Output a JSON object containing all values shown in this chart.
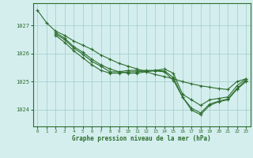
{
  "bg_color": "#d4eeee",
  "grid_color": "#aacfcf",
  "line_color": "#2d6e2d",
  "xlabel": "Graphe pression niveau de la mer (hPa)",
  "xlim": [
    -0.5,
    23.5
  ],
  "ylim": [
    1023.4,
    1027.8
  ],
  "yticks": [
    1024,
    1025,
    1026,
    1027
  ],
  "xticks": [
    0,
    1,
    2,
    3,
    4,
    5,
    6,
    7,
    8,
    9,
    10,
    11,
    12,
    13,
    14,
    15,
    16,
    17,
    18,
    19,
    20,
    21,
    22,
    23
  ],
  "lines": [
    {
      "x": [
        0,
        1,
        2,
        3,
        4,
        5,
        6,
        7,
        8,
        9,
        10,
        11,
        12,
        13,
        14,
        15,
        16,
        17,
        18,
        19,
        20,
        21,
        22,
        23
      ],
      "y": [
        1027.55,
        1027.1,
        1026.8,
        1026.65,
        1026.45,
        1026.3,
        1026.15,
        1025.95,
        1025.8,
        1025.65,
        1025.55,
        1025.45,
        1025.35,
        1025.25,
        1025.18,
        1025.1,
        1025.0,
        1024.92,
        1024.85,
        1024.8,
        1024.75,
        1024.72,
        1025.0,
        1025.1
      ]
    },
    {
      "x": [
        2,
        3,
        4,
        5,
        6,
        7,
        8,
        9,
        10,
        11,
        12,
        13,
        14,
        15,
        16,
        17,
        18,
        19,
        20,
        21,
        22,
        23
      ],
      "y": [
        1026.75,
        1026.55,
        1026.25,
        1026.05,
        1025.8,
        1025.6,
        1025.45,
        1025.35,
        1025.3,
        1025.3,
        1025.35,
        1025.4,
        1025.45,
        1025.3,
        1024.55,
        1024.35,
        1024.15,
        1024.35,
        1024.4,
        1024.45,
        1024.85,
        1025.1
      ]
    },
    {
      "x": [
        2,
        3,
        4,
        5,
        6,
        7,
        8,
        9,
        10,
        11,
        12,
        13,
        14,
        15,
        16,
        17,
        18,
        19,
        20,
        21,
        22,
        23
      ],
      "y": [
        1026.7,
        1026.5,
        1026.2,
        1025.98,
        1025.72,
        1025.55,
        1025.35,
        1025.35,
        1025.4,
        1025.4,
        1025.4,
        1025.4,
        1025.38,
        1025.15,
        1024.45,
        1024.05,
        1023.88,
        1024.2,
        1024.3,
        1024.38,
        1024.75,
        1025.05
      ]
    },
    {
      "x": [
        2,
        3,
        4,
        5,
        6,
        7,
        8,
        9,
        10,
        11,
        12,
        13,
        14,
        15,
        16,
        17,
        18,
        19,
        20,
        21,
        22,
        23
      ],
      "y": [
        1026.65,
        1026.4,
        1026.1,
        1025.85,
        1025.6,
        1025.4,
        1025.3,
        1025.3,
        1025.35,
        1025.35,
        1025.38,
        1025.38,
        1025.35,
        1025.05,
        1024.45,
        1023.98,
        1023.82,
        1024.15,
        1024.28,
        1024.35,
        1024.72,
        1025.0
      ]
    }
  ]
}
